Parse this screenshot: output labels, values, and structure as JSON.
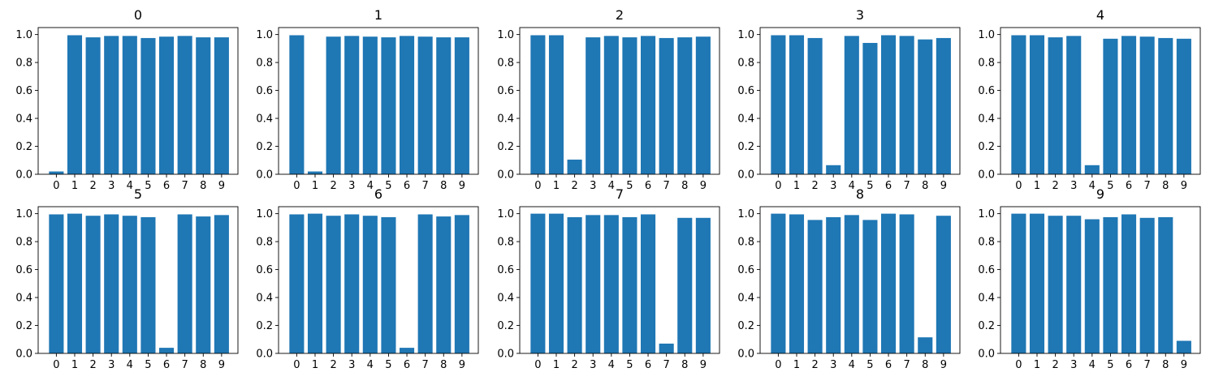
{
  "chart_data": [
    {
      "type": "bar",
      "title": "0",
      "categories": [
        "0",
        "1",
        "2",
        "3",
        "4",
        "5",
        "6",
        "7",
        "8",
        "9"
      ],
      "values": [
        0.02,
        0.995,
        0.98,
        0.99,
        0.99,
        0.975,
        0.985,
        0.99,
        0.98,
        0.98
      ],
      "ylim": [
        0,
        1.05
      ],
      "yticks": [
        "0.0",
        "0.2",
        "0.4",
        "0.6",
        "0.8",
        "1.0"
      ],
      "color": "#1f77b4"
    },
    {
      "type": "bar",
      "title": "1",
      "categories": [
        "0",
        "1",
        "2",
        "3",
        "4",
        "5",
        "6",
        "7",
        "8",
        "9"
      ],
      "values": [
        0.995,
        0.02,
        0.985,
        0.99,
        0.985,
        0.98,
        0.99,
        0.985,
        0.98,
        0.98
      ],
      "ylim": [
        0,
        1.05
      ],
      "yticks": [
        "0.0",
        "0.2",
        "0.4",
        "0.6",
        "0.8",
        "1.0"
      ],
      "color": "#1f77b4"
    },
    {
      "type": "bar",
      "title": "2",
      "categories": [
        "0",
        "1",
        "2",
        "3",
        "4",
        "5",
        "6",
        "7",
        "8",
        "9"
      ],
      "values": [
        0.995,
        0.995,
        0.105,
        0.98,
        0.99,
        0.98,
        0.99,
        0.975,
        0.98,
        0.985
      ],
      "ylim": [
        0,
        1.05
      ],
      "yticks": [
        "0.0",
        "0.2",
        "0.4",
        "0.6",
        "0.8",
        "1.0"
      ],
      "color": "#1f77b4"
    },
    {
      "type": "bar",
      "title": "3",
      "categories": [
        "0",
        "1",
        "2",
        "3",
        "4",
        "5",
        "6",
        "7",
        "8",
        "9"
      ],
      "values": [
        0.995,
        0.995,
        0.975,
        0.065,
        0.99,
        0.94,
        0.995,
        0.99,
        0.965,
        0.975
      ],
      "ylim": [
        0,
        1.05
      ],
      "yticks": [
        "0.0",
        "0.2",
        "0.4",
        "0.6",
        "0.8",
        "1.0"
      ],
      "color": "#1f77b4"
    },
    {
      "type": "bar",
      "title": "4",
      "categories": [
        "0",
        "1",
        "2",
        "3",
        "4",
        "5",
        "6",
        "7",
        "8",
        "9"
      ],
      "values": [
        0.995,
        0.995,
        0.98,
        0.99,
        0.065,
        0.97,
        0.99,
        0.985,
        0.975,
        0.97
      ],
      "ylim": [
        0,
        1.05
      ],
      "yticks": [
        "0.0",
        "0.2",
        "0.4",
        "0.6",
        "0.8",
        "1.0"
      ],
      "color": "#1f77b4"
    },
    {
      "type": "bar",
      "title": "5",
      "categories": [
        "0",
        "1",
        "2",
        "3",
        "4",
        "5",
        "6",
        "7",
        "8",
        "9"
      ],
      "values": [
        0.995,
        1.0,
        0.985,
        0.995,
        0.985,
        0.975,
        0.04,
        0.995,
        0.98,
        0.99
      ],
      "ylim": [
        0,
        1.05
      ],
      "yticks": [
        "0.0",
        "0.2",
        "0.4",
        "0.6",
        "0.8",
        "1.0"
      ],
      "color": "#1f77b4"
    },
    {
      "type": "bar",
      "title": "6",
      "categories": [
        "0",
        "1",
        "2",
        "3",
        "4",
        "5",
        "6",
        "7",
        "8",
        "9"
      ],
      "values": [
        0.995,
        1.0,
        0.985,
        0.995,
        0.985,
        0.975,
        0.04,
        0.995,
        0.98,
        0.99
      ],
      "ylim": [
        0,
        1.05
      ],
      "yticks": [
        "0.0",
        "0.2",
        "0.4",
        "0.6",
        "0.8",
        "1.0"
      ],
      "color": "#1f77b4"
    },
    {
      "type": "bar",
      "title": "7",
      "categories": [
        "0",
        "1",
        "2",
        "3",
        "4",
        "5",
        "6",
        "7",
        "8",
        "9"
      ],
      "values": [
        1.0,
        1.0,
        0.975,
        0.99,
        0.99,
        0.975,
        0.995,
        0.07,
        0.97,
        0.97
      ],
      "ylim": [
        0,
        1.05
      ],
      "yticks": [
        "0.0",
        "0.2",
        "0.4",
        "0.6",
        "0.8",
        "1.0"
      ],
      "color": "#1f77b4"
    },
    {
      "type": "bar",
      "title": "8",
      "categories": [
        "0",
        "1",
        "2",
        "3",
        "4",
        "5",
        "6",
        "7",
        "8",
        "9"
      ],
      "values": [
        1.0,
        0.995,
        0.955,
        0.975,
        0.99,
        0.955,
        1.0,
        0.995,
        0.115,
        0.985
      ],
      "ylim": [
        0,
        1.05
      ],
      "yticks": [
        "0.0",
        "0.2",
        "0.4",
        "0.6",
        "0.8",
        "1.0"
      ],
      "color": "#1f77b4"
    },
    {
      "type": "bar",
      "title": "9",
      "categories": [
        "0",
        "1",
        "2",
        "3",
        "4",
        "5",
        "6",
        "7",
        "8",
        "9"
      ],
      "values": [
        1.0,
        1.0,
        0.985,
        0.985,
        0.96,
        0.975,
        0.995,
        0.97,
        0.975,
        0.09
      ],
      "ylim": [
        0,
        1.05
      ],
      "yticks": [
        "0.0",
        "0.2",
        "0.4",
        "0.6",
        "0.8",
        "1.0"
      ],
      "color": "#1f77b4"
    }
  ]
}
